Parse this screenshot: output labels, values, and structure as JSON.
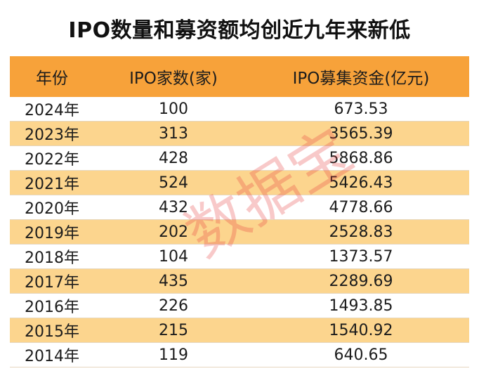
{
  "title": "IPO数量和募资额均创近九年来新低",
  "headers": [
    "年份",
    "IPO家数(家)",
    "IPO募集资金(亿元)"
  ],
  "rows": [
    [
      "2024年",
      "100",
      "673.53"
    ],
    [
      "2023年",
      "313",
      "3565.39"
    ],
    [
      "2022年",
      "428",
      "5868.86"
    ],
    [
      "2021年",
      "524",
      "5426.43"
    ],
    [
      "2020年",
      "432",
      "4778.66"
    ],
    [
      "2019年",
      "202",
      "2528.83"
    ],
    [
      "2018年",
      "104",
      "1373.57"
    ],
    [
      "2017年",
      "435",
      "2289.69"
    ],
    [
      "2016年",
      "226",
      "1493.85"
    ],
    [
      "2015年",
      "215",
      "1540.92"
    ],
    [
      "2014年",
      "119",
      "640.65"
    ]
  ],
  "watermark": "数据宝",
  "colors": {
    "header": "#f7a23a",
    "stripe": "#fcd58e",
    "watermark": "#e63c3c"
  }
}
